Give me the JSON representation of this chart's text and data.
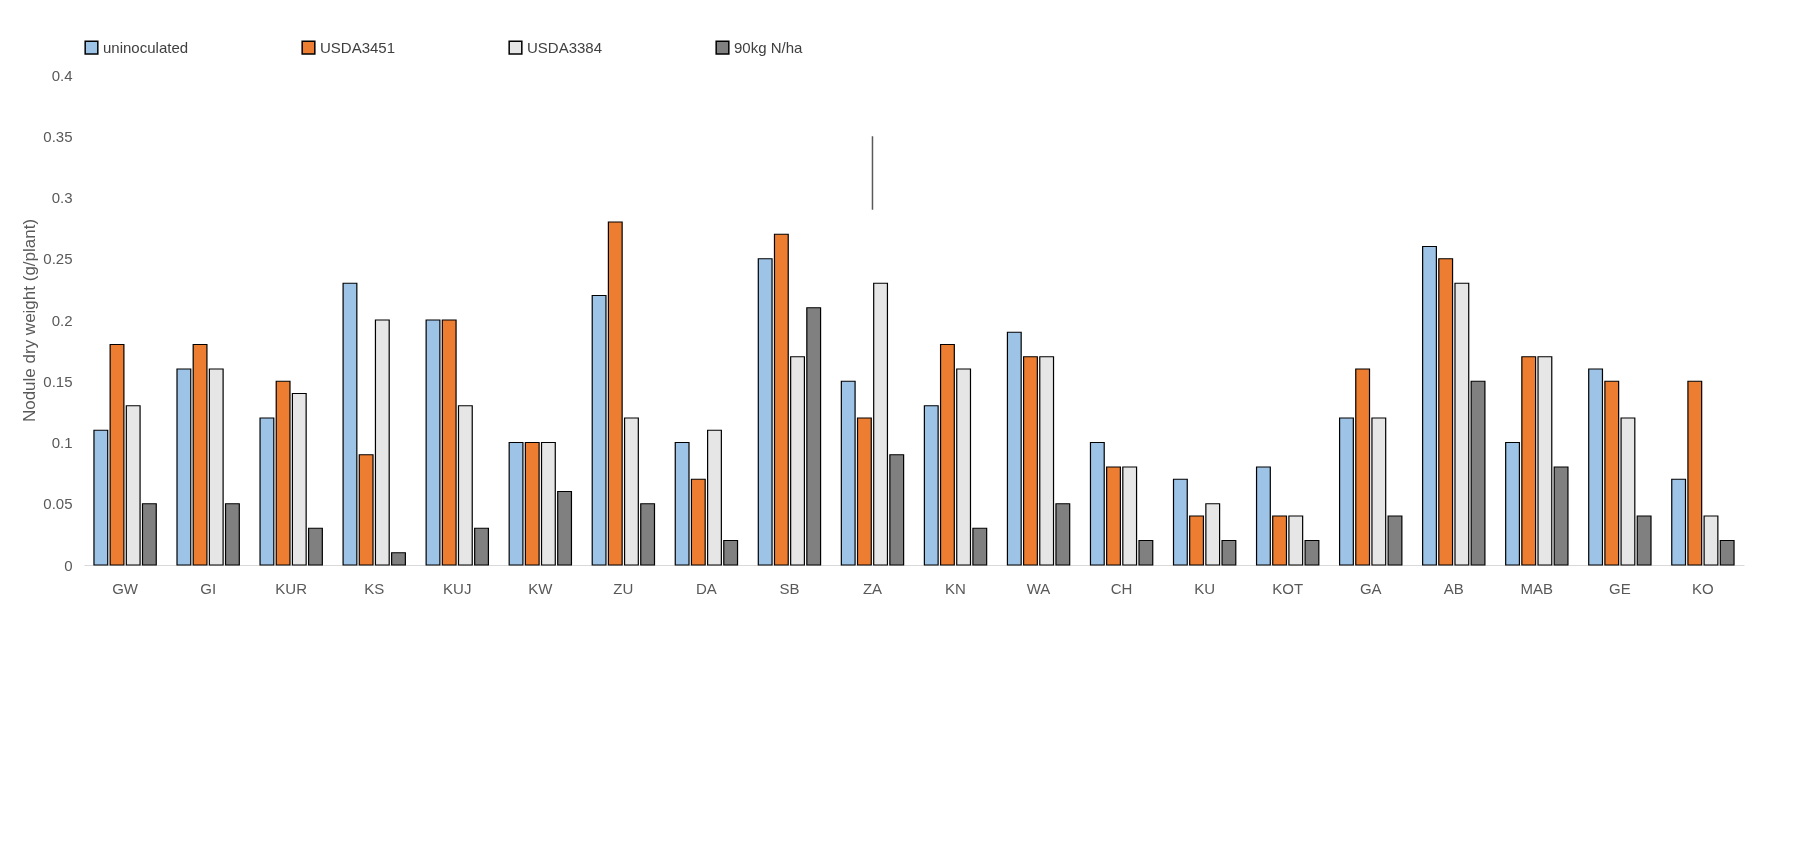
{
  "chart_data": {
    "type": "bar",
    "ylabel": "Nodule dry weight (g/plant)",
    "categories": [
      "GW",
      "GI",
      "KUR",
      "KS",
      "KUJ",
      "KW",
      "ZU",
      "DA",
      "SB",
      "ZA",
      "KN",
      "WA",
      "CH",
      "KU",
      "KOT",
      "GA",
      "AB",
      "MAB",
      "GE",
      "KO"
    ],
    "series": [
      {
        "name": "uninoculated",
        "color": "#9dc3e6",
        "values": [
          0.11,
          0.16,
          0.12,
          0.23,
          0.2,
          0.1,
          0.22,
          0.1,
          0.25,
          0.15,
          0.13,
          0.19,
          0.1,
          0.07,
          0.08,
          0.12,
          0.26,
          0.1,
          0.16,
          0.07
        ]
      },
      {
        "name": "USDA3451",
        "color": "#ed7d31",
        "values": [
          0.18,
          0.18,
          0.15,
          0.09,
          0.2,
          0.1,
          0.28,
          0.07,
          0.27,
          0.12,
          0.18,
          0.17,
          0.08,
          0.04,
          0.04,
          0.16,
          0.25,
          0.17,
          0.15,
          0.15
        ]
      },
      {
        "name": "USDA3384",
        "color": "#e7e6e6",
        "values": [
          0.13,
          0.16,
          0.14,
          0.2,
          0.13,
          0.1,
          0.12,
          0.11,
          0.17,
          0.23,
          0.16,
          0.17,
          0.08,
          0.05,
          0.04,
          0.12,
          0.23,
          0.17,
          0.12,
          0.04
        ]
      },
      {
        "name": "90kg N/ha",
        "color": "#808080",
        "values": [
          0.05,
          0.05,
          0.03,
          0.01,
          0.03,
          0.06,
          0.05,
          0.02,
          0.21,
          0.09,
          0.03,
          0.05,
          0.02,
          0.02,
          0.02,
          0.04,
          0.15,
          0.08,
          0.04,
          0.02
        ]
      },
      {
        "type": "line",
        "marker": "none",
        "x": [
          "ZA",
          "ZA"
        ],
        "values": [
          0.29,
          0.35
        ],
        "color": "#595959"
      }
    ],
    "ylim": [
      0,
      0.4
    ],
    "yticks": [
      0,
      0.05,
      0.1,
      0.15,
      0.2,
      0.25,
      0.3,
      0.35,
      0.4
    ],
    "grid": false,
    "legend": "top"
  }
}
